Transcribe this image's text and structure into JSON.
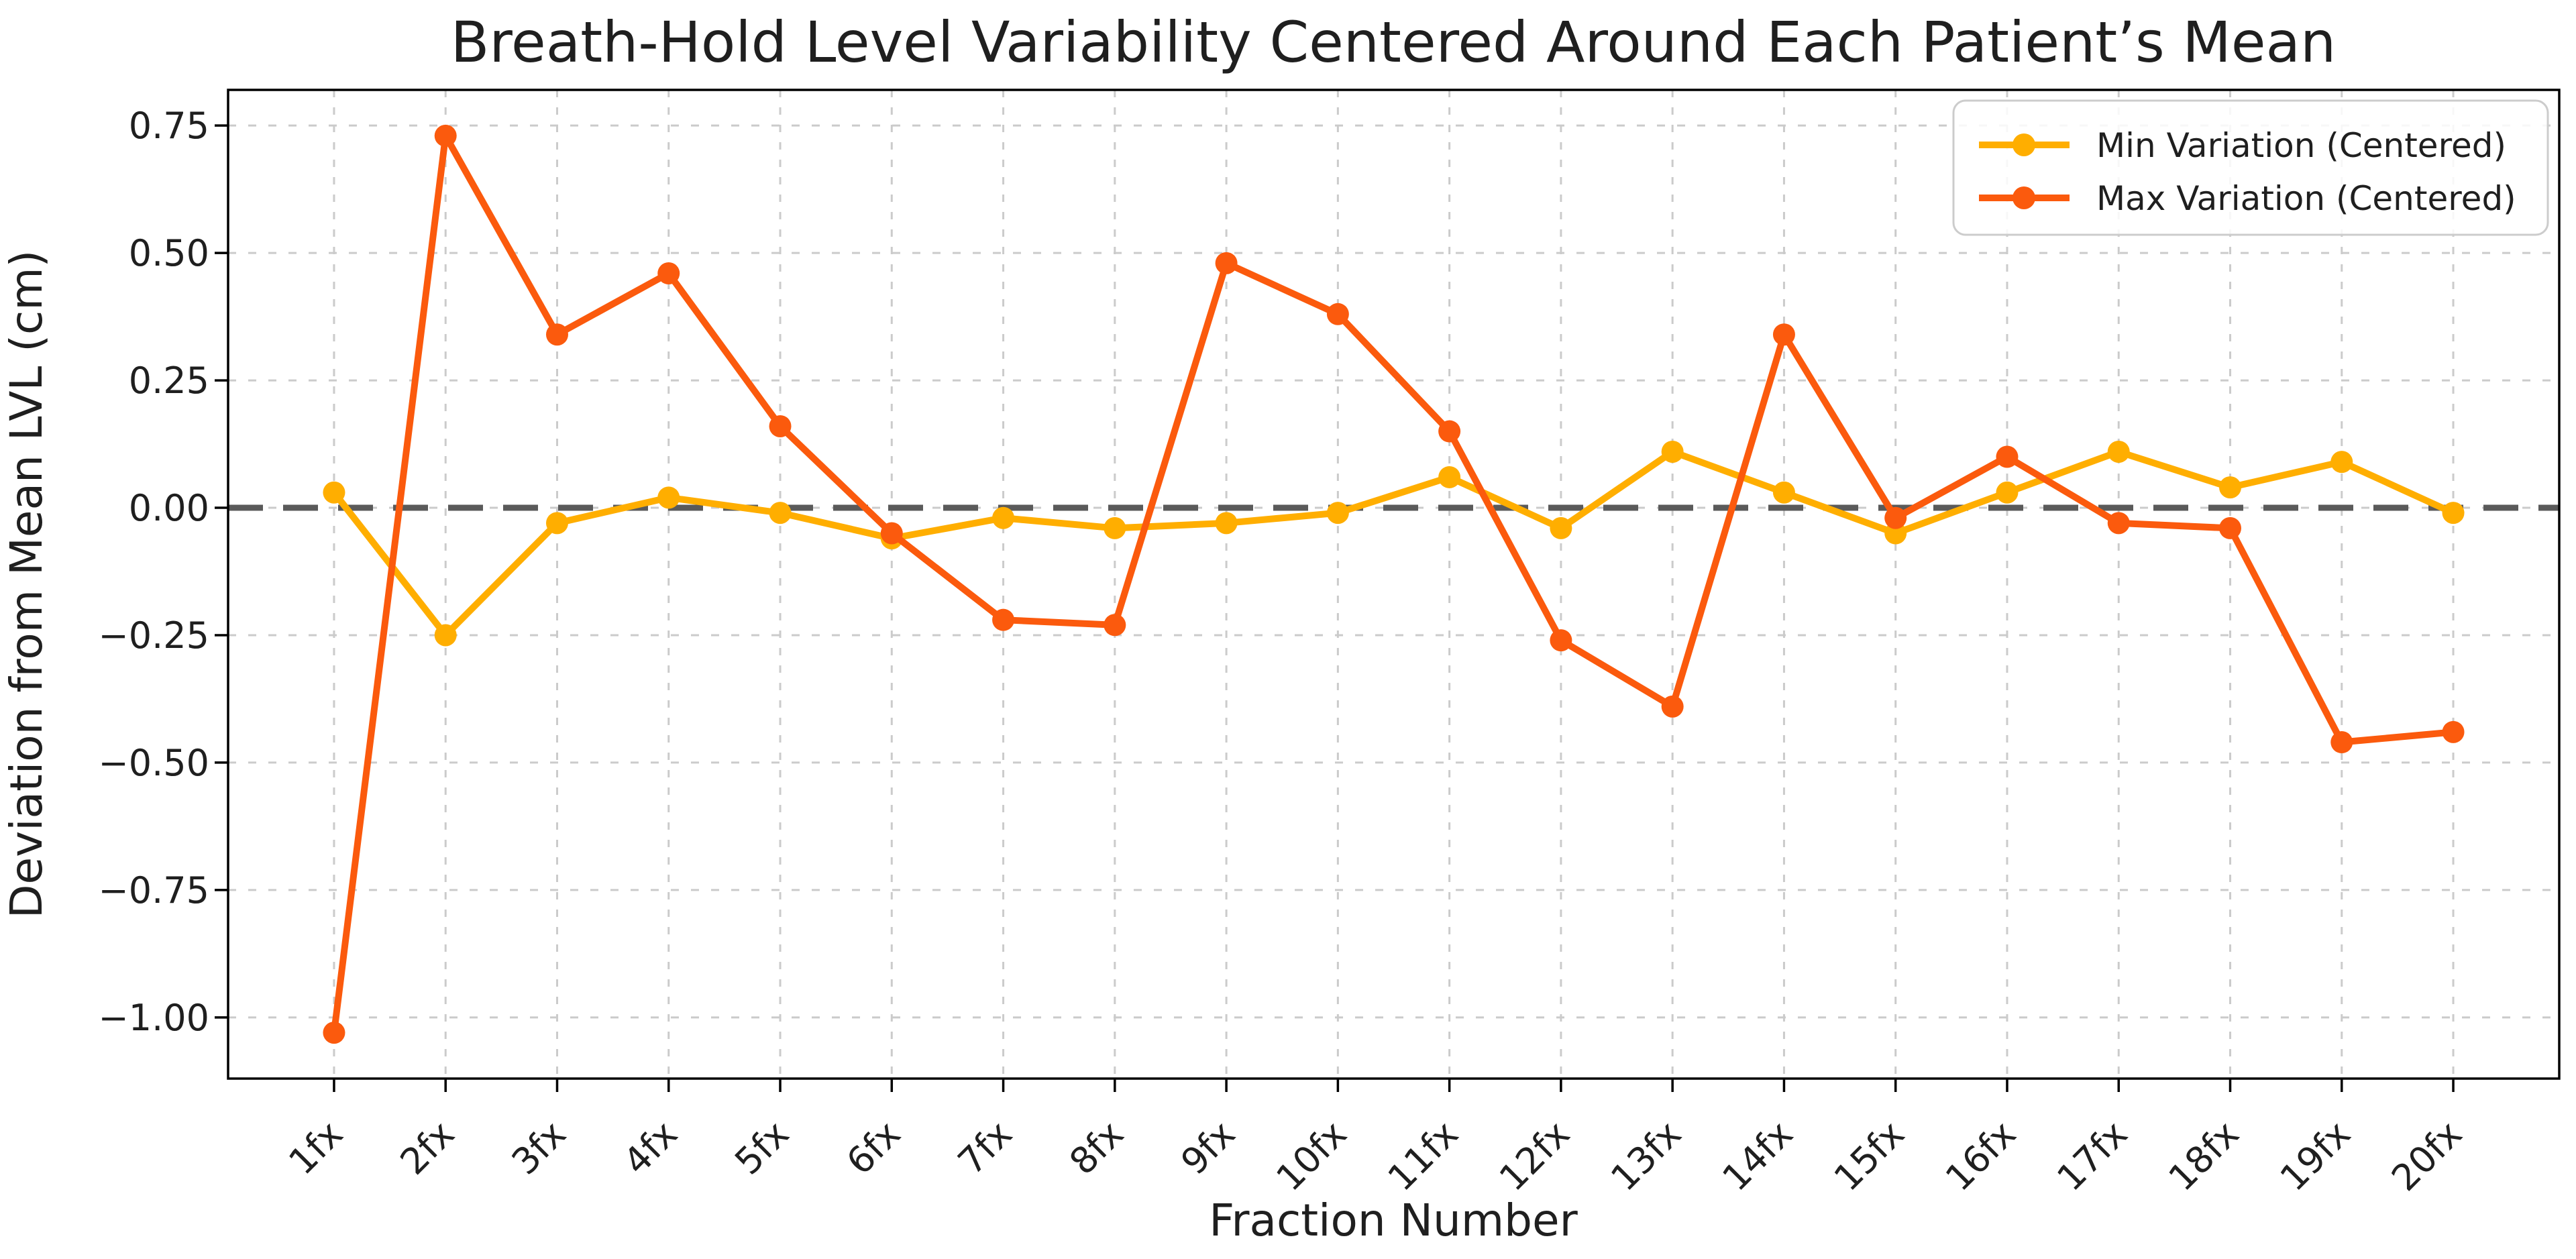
{
  "chart_data": {
    "type": "line",
    "title": "Breath-Hold Level Variability Centered Around Each Patient’s Mean",
    "xlabel": "Fraction Number",
    "ylabel": "Deviation from Mean LVL (cm)",
    "categories": [
      "1fx",
      "2fx",
      "3fx",
      "4fx",
      "5fx",
      "6fx",
      "7fx",
      "8fx",
      "9fx",
      "10fx",
      "11fx",
      "12fx",
      "13fx",
      "14fx",
      "15fx",
      "16fx",
      "17fx",
      "18fx",
      "19fx",
      "20fx"
    ],
    "series": [
      {
        "name": "Min Variation (Centered)",
        "color": "#FFAE00",
        "values": [
          0.03,
          -0.25,
          -0.03,
          0.02,
          -0.01,
          -0.06,
          -0.02,
          -0.04,
          -0.03,
          -0.01,
          0.06,
          -0.04,
          0.11,
          0.03,
          -0.05,
          0.03,
          0.11,
          0.04,
          0.09,
          -0.01
        ]
      },
      {
        "name": "Max Variation (Centered)",
        "color": "#FB5A0D",
        "values": [
          -1.03,
          0.73,
          0.34,
          0.46,
          0.16,
          -0.05,
          -0.22,
          -0.23,
          0.48,
          0.38,
          0.15,
          -0.26,
          -0.39,
          0.34,
          -0.02,
          0.1,
          -0.03,
          -0.04,
          -0.46,
          -0.44
        ]
      }
    ],
    "yticks": [
      {
        "v": 0.75,
        "label": "0.75"
      },
      {
        "v": 0.5,
        "label": "0.50"
      },
      {
        "v": 0.25,
        "label": "0.25"
      },
      {
        "v": 0.0,
        "label": "0.00"
      },
      {
        "v": -0.25,
        "label": "−0.25"
      },
      {
        "v": -0.5,
        "label": "−0.50"
      },
      {
        "v": -0.75,
        "label": "−0.75"
      },
      {
        "v": -1.0,
        "label": "−1.00"
      }
    ],
    "ylim": [
      -1.12,
      0.82
    ],
    "grid": true,
    "legend_position": "upper right",
    "zero_line_color": "#5A5A5A",
    "grid_color": "#CBCBCB",
    "spine_color": "#000000",
    "background_color": "#FFFFFF"
  }
}
